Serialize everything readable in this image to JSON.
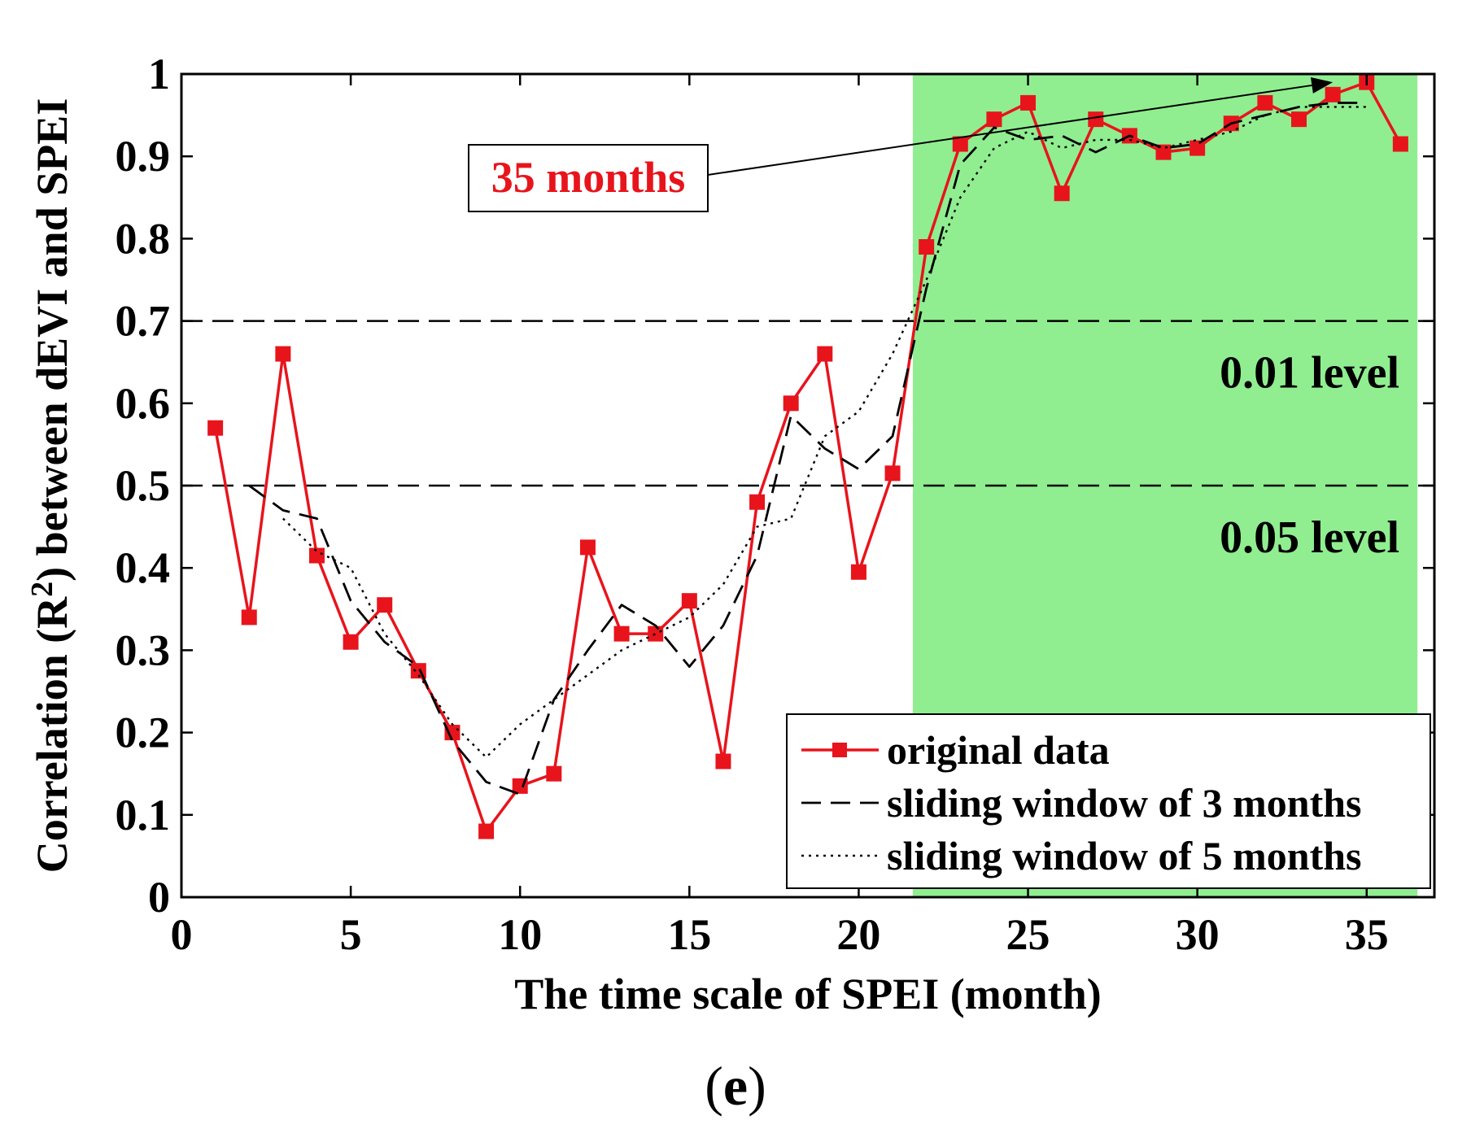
{
  "chart_data": {
    "type": "line",
    "xlabel": "The time scale of SPEI (month)",
    "ylabel_prefix": "Correlation (R",
    "ylabel_sup": "2",
    "ylabel_suffix": ") between dEVI and SPEI",
    "xlim": [
      0,
      37
    ],
    "ylim": [
      0,
      1
    ],
    "xticks": [
      0,
      5,
      10,
      15,
      20,
      25,
      30,
      35
    ],
    "yticks": [
      0,
      0.1,
      0.2,
      0.3,
      0.4,
      0.5,
      0.6,
      0.7,
      0.8,
      0.9,
      1
    ],
    "ytick_labels": [
      "0",
      "0.1",
      "0.2",
      "0.3",
      "0.4",
      "0.5",
      "0.6",
      "0.7",
      "0.8",
      "0.9",
      "1"
    ],
    "highlight_region": {
      "x_from": 21.6,
      "x_to": 36.5,
      "color": "#90ee90"
    },
    "significance_lines": [
      {
        "y": 0.7,
        "label": "0.01 level"
      },
      {
        "y": 0.5,
        "label": "0.05 level"
      }
    ],
    "annotation": {
      "text": "35 months",
      "target_x": 34,
      "target_y": 0.99,
      "color": "#e8141c"
    },
    "series": [
      {
        "name": "original data",
        "style": "solid-marker",
        "color": "#e8141c",
        "x": [
          1,
          2,
          3,
          4,
          5,
          6,
          7,
          8,
          9,
          10,
          11,
          12,
          13,
          14,
          15,
          16,
          17,
          18,
          19,
          20,
          21,
          22,
          23,
          24,
          25,
          26,
          27,
          28,
          29,
          30,
          31,
          32,
          33,
          34,
          35,
          36
        ],
        "values": [
          0.57,
          0.34,
          0.66,
          0.415,
          0.31,
          0.355,
          0.275,
          0.2,
          0.08,
          0.135,
          0.15,
          0.425,
          0.32,
          0.32,
          0.36,
          0.165,
          0.48,
          0.6,
          0.66,
          0.395,
          0.515,
          0.79,
          0.915,
          0.945,
          0.965,
          0.855,
          0.945,
          0.925,
          0.905,
          0.91,
          0.94,
          0.965,
          0.945,
          0.975,
          0.99,
          0.915
        ]
      },
      {
        "name": "sliding window of 3 months",
        "style": "dashed",
        "color": "#000000",
        "x": [
          2,
          3,
          4,
          5,
          6,
          7,
          8,
          9,
          10,
          11,
          12,
          13,
          14,
          15,
          16,
          17,
          18,
          19,
          20,
          21,
          22,
          23,
          24,
          25,
          26,
          27,
          28,
          29,
          30,
          31,
          32,
          33,
          34,
          35
        ],
        "values": [
          0.5,
          0.47,
          0.46,
          0.36,
          0.31,
          0.28,
          0.19,
          0.14,
          0.125,
          0.24,
          0.3,
          0.355,
          0.33,
          0.28,
          0.33,
          0.415,
          0.585,
          0.545,
          0.52,
          0.56,
          0.74,
          0.89,
          0.935,
          0.92,
          0.925,
          0.905,
          0.925,
          0.91,
          0.915,
          0.94,
          0.95,
          0.96,
          0.965,
          0.965
        ]
      },
      {
        "name": "sliding window of 5 months",
        "style": "dotted",
        "color": "#000000",
        "x": [
          3,
          4,
          5,
          6,
          7,
          8,
          9,
          10,
          11,
          12,
          13,
          14,
          15,
          16,
          17,
          18,
          19,
          20,
          21,
          22,
          23,
          24,
          25,
          26,
          27,
          28,
          29,
          30,
          31,
          32,
          33,
          34,
          35
        ],
        "values": [
          0.46,
          0.42,
          0.4,
          0.32,
          0.27,
          0.21,
          0.17,
          0.21,
          0.24,
          0.27,
          0.3,
          0.32,
          0.34,
          0.38,
          0.45,
          0.46,
          0.56,
          0.59,
          0.66,
          0.75,
          0.85,
          0.91,
          0.93,
          0.91,
          0.92,
          0.92,
          0.91,
          0.92,
          0.93,
          0.95,
          0.96,
          0.96,
          0.96
        ]
      }
    ]
  },
  "figure": {
    "panel_label_open": "(",
    "panel_label_letter": "e",
    "panel_label_close": ")"
  }
}
